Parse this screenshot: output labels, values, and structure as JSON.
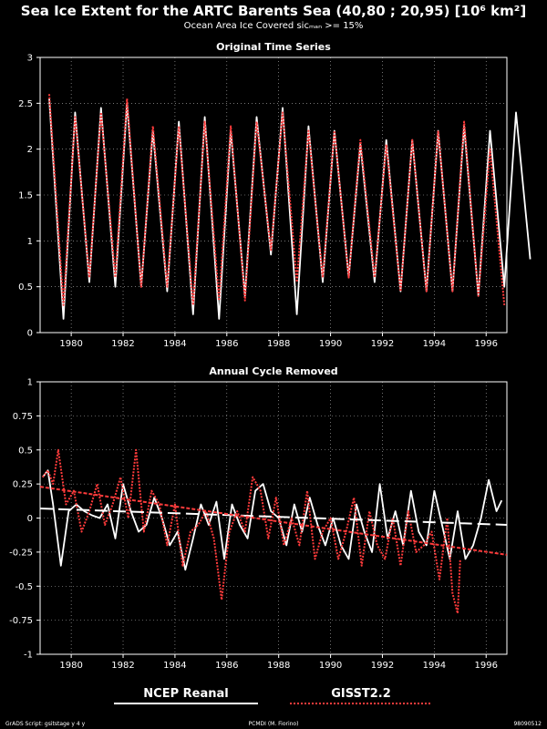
{
  "title": "Sea Ice Extent for the ARTC Barents Sea (40,80 ; 20,95) [10⁶ km²]",
  "subtitle": "Ocean Area Ice Covered sicₘₐₙ >= 15%",
  "footer": {
    "left": "GrADS Script: gsitstage y 4 y",
    "center": "PCMDI (M. Fiorino)",
    "right": "98090512"
  },
  "colors": {
    "ncep": "#ffffff",
    "gisst": "#ff3b3b",
    "background": "#000000",
    "grid": "#bbbbbb"
  },
  "chart_data": [
    {
      "type": "line",
      "title": "Original Time Series",
      "xlim": [
        1978.8,
        1996.8
      ],
      "ylim": [
        0,
        3
      ],
      "xticks": [
        "1980",
        "1982",
        "1984",
        "1986",
        "1988",
        "1990",
        "1992",
        "1994",
        "1996"
      ],
      "yticks": [
        "0",
        "0.5",
        "1",
        "1.5",
        "2",
        "2.5",
        "3"
      ],
      "grid": true,
      "series": [
        {
          "name": "NCEP Reanal",
          "annual_max": [
            2.55,
            2.4,
            2.45,
            2.5,
            2.2,
            2.3,
            2.35,
            2.2,
            2.35,
            2.45,
            2.25,
            2.2,
            2.05,
            2.1,
            2.1,
            2.2,
            2.25,
            2.2,
            2.4
          ],
          "annual_min": [
            0.15,
            0.55,
            0.5,
            0.5,
            0.45,
            0.2,
            0.15,
            0.4,
            0.85,
            0.2,
            0.55,
            0.6,
            0.55,
            0.45,
            0.45,
            0.45,
            0.4,
            0.5,
            0.8
          ]
        },
        {
          "name": "GISST2.2",
          "annual_max": [
            2.6,
            2.35,
            2.4,
            2.55,
            2.25,
            2.25,
            2.3,
            2.25,
            2.3,
            2.4,
            2.2,
            2.2,
            2.1,
            2.05,
            2.1,
            2.2,
            2.3,
            2.0
          ],
          "annual_min": [
            0.3,
            0.6,
            0.6,
            0.5,
            0.5,
            0.3,
            0.35,
            0.35,
            0.9,
            0.55,
            0.6,
            0.6,
            0.6,
            0.45,
            0.45,
            0.45,
            0.4,
            0.3
          ]
        }
      ]
    },
    {
      "type": "line",
      "title": "Annual Cycle Removed",
      "xlim": [
        1978.8,
        1996.8
      ],
      "ylim": [
        -1,
        1
      ],
      "xticks": [
        "1980",
        "1982",
        "1984",
        "1986",
        "1988",
        "1990",
        "1992",
        "1994",
        "1996"
      ],
      "yticks": [
        "-1",
        "-0.75",
        "-0.5",
        "-0.25",
        "0",
        "0.25",
        "0.5",
        "0.75",
        "1"
      ],
      "grid": true,
      "series": [
        {
          "name": "NCEP Reanal",
          "x": [
            1978.9,
            1979.1,
            1979.3,
            1979.6,
            1979.9,
            1980.2,
            1980.5,
            1980.8,
            1981.1,
            1981.4,
            1981.7,
            1982.0,
            1982.3,
            1982.6,
            1982.9,
            1983.2,
            1983.5,
            1983.8,
            1984.1,
            1984.4,
            1984.7,
            1985.0,
            1985.3,
            1985.6,
            1985.9,
            1986.2,
            1986.5,
            1986.8,
            1987.1,
            1987.4,
            1987.7,
            1988.0,
            1988.3,
            1988.6,
            1988.9,
            1989.2,
            1989.5,
            1989.8,
            1990.1,
            1990.4,
            1990.7,
            1991.0,
            1991.3,
            1991.6,
            1991.9,
            1992.2,
            1992.5,
            1992.8,
            1993.1,
            1993.4,
            1993.7,
            1994.0,
            1994.3,
            1994.6,
            1994.9,
            1995.2,
            1995.5,
            1995.8,
            1996.1,
            1996.4,
            1996.6
          ],
          "y": [
            0.3,
            0.35,
            0.1,
            -0.35,
            0.05,
            0.1,
            0.05,
            0.02,
            0.0,
            0.1,
            -0.15,
            0.25,
            0.05,
            -0.1,
            -0.05,
            0.15,
            0.0,
            -0.2,
            -0.1,
            -0.38,
            -0.15,
            0.1,
            -0.05,
            0.12,
            -0.3,
            0.1,
            -0.05,
            -0.15,
            0.2,
            0.25,
            0.05,
            0.0,
            -0.2,
            0.1,
            -0.1,
            0.15,
            -0.05,
            -0.2,
            0.0,
            -0.2,
            -0.3,
            0.1,
            -0.1,
            -0.25,
            0.25,
            -0.15,
            0.05,
            -0.2,
            0.2,
            -0.1,
            -0.2,
            0.2,
            -0.05,
            -0.3,
            0.05,
            -0.3,
            -0.2,
            0.0,
            0.28,
            0.05,
            0.13
          ]
        },
        {
          "name": "GISST2.2",
          "x": [
            1978.9,
            1979.1,
            1979.3,
            1979.5,
            1979.8,
            1980.1,
            1980.4,
            1980.7,
            1981.0,
            1981.3,
            1981.6,
            1981.9,
            1982.2,
            1982.5,
            1982.8,
            1983.1,
            1983.4,
            1983.7,
            1984.0,
            1984.3,
            1984.6,
            1984.9,
            1985.2,
            1985.5,
            1985.8,
            1986.1,
            1986.4,
            1986.7,
            1987.0,
            1987.3,
            1987.6,
            1987.9,
            1988.2,
            1988.5,
            1988.8,
            1989.1,
            1989.4,
            1989.7,
            1990.0,
            1990.3,
            1990.6,
            1990.9,
            1991.2,
            1991.5,
            1991.8,
            1992.1,
            1992.4,
            1992.7,
            1993.0,
            1993.3,
            1993.6,
            1993.9,
            1994.2,
            1994.5,
            1994.7,
            1994.9,
            1995.0
          ],
          "y": [
            0.3,
            0.35,
            0.25,
            0.5,
            0.1,
            0.2,
            -0.1,
            0.05,
            0.25,
            -0.05,
            0.1,
            0.3,
            0.0,
            0.5,
            -0.1,
            0.2,
            0.1,
            -0.2,
            0.1,
            -0.35,
            -0.1,
            -0.05,
            0.05,
            -0.15,
            -0.6,
            -0.1,
            0.05,
            -0.1,
            0.3,
            0.2,
            -0.15,
            0.15,
            -0.2,
            0.0,
            -0.2,
            0.2,
            -0.3,
            -0.1,
            0.0,
            -0.3,
            -0.1,
            0.15,
            -0.35,
            0.05,
            -0.2,
            -0.3,
            0.0,
            -0.35,
            0.05,
            -0.25,
            -0.2,
            -0.1,
            -0.45,
            0.0,
            -0.55,
            -0.7,
            -0.3
          ]
        }
      ],
      "trend_lines": [
        {
          "name": "NCEP Reanal trend",
          "x": [
            1978.8,
            1996.8
          ],
          "y": [
            0.07,
            -0.05
          ]
        },
        {
          "name": "GISST2.2 trend",
          "x": [
            1978.8,
            1996.8
          ],
          "y": [
            0.23,
            -0.27
          ]
        }
      ]
    }
  ],
  "legend": [
    {
      "label": "NCEP Reanal",
      "color": "#ffffff",
      "style": "solid"
    },
    {
      "label": "GISST2.2",
      "color": "#ff3b3b",
      "style": "dotted"
    }
  ]
}
